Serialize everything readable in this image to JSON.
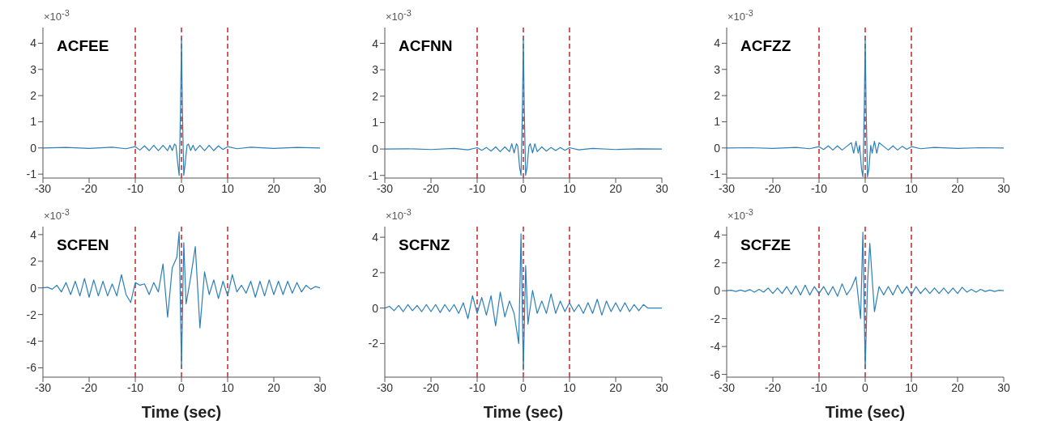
{
  "chart_data": [
    {
      "type": "line",
      "title": "ACFEE",
      "annotations": [
        "×10$^{-3}$"
      ],
      "xlim": [
        -30,
        30
      ],
      "xticks": [
        -30,
        -20,
        -10,
        0,
        10,
        20,
        30
      ],
      "ylim": [
        -1.15,
        4.6
      ],
      "yticks": [
        -1,
        0,
        1,
        2,
        3,
        4
      ],
      "x": [
        -30,
        -25,
        -20,
        -15,
        -12,
        -10,
        -9,
        -8,
        -7,
        -6,
        -5,
        -4,
        -3,
        -2.5,
        -2,
        -1.5,
        -1.2,
        -0.8,
        -0.5,
        -0.2,
        0,
        0.2,
        0.5,
        0.8,
        1.2,
        1.5,
        2,
        2.5,
        3,
        4,
        5,
        6,
        7,
        8,
        9,
        10,
        12,
        15,
        20,
        25,
        30
      ],
      "series": [
        {
          "color": "#2c7fb8",
          "values": [
            0,
            0.02,
            -0.02,
            0.03,
            -0.03,
            0.05,
            -0.08,
            0.08,
            -0.1,
            0.1,
            -0.1,
            0.1,
            -0.1,
            0.1,
            -0.1,
            0.15,
            0.1,
            -0.6,
            -1.05,
            1.5,
            4.2,
            1.5,
            -1.05,
            -0.6,
            0.1,
            0.15,
            -0.1,
            0.1,
            -0.1,
            0.1,
            -0.1,
            0.1,
            -0.1,
            0.08,
            -0.06,
            0.05,
            -0.03,
            0.03,
            -0.02,
            0.02,
            0
          ]
        }
      ],
      "ref_lines": [
        {
          "axis": "x",
          "value": -10,
          "color": "#c0282d",
          "line_style": "dashed"
        },
        {
          "axis": "x",
          "value": 0,
          "color": "#c0282d",
          "line_style": "dashed"
        },
        {
          "axis": "x",
          "value": 10,
          "color": "#c0282d",
          "line_style": "dashed"
        }
      ]
    },
    {
      "type": "line",
      "title": "ACFNN",
      "annotations": [
        "×10$^{-3}$"
      ],
      "xlim": [
        -30,
        30
      ],
      "xticks": [
        -30,
        -20,
        -10,
        0,
        10,
        20,
        30
      ],
      "ylim": [
        -1.1,
        4.6
      ],
      "yticks": [
        -1,
        0,
        1,
        2,
        3,
        4
      ],
      "x": [
        -30,
        -25,
        -20,
        -15,
        -12,
        -10,
        -9,
        -8,
        -7,
        -6,
        -5,
        -4,
        -3,
        -2.5,
        -2,
        -1.5,
        -1.2,
        -0.8,
        -0.5,
        -0.2,
        0,
        0.2,
        0.5,
        0.8,
        1.2,
        1.5,
        2,
        2.5,
        3,
        4,
        5,
        6,
        7,
        8,
        9,
        10,
        12,
        15,
        20,
        25,
        30
      ],
      "series": [
        {
          "color": "#2c7fb8",
          "values": [
            0,
            0.01,
            -0.02,
            0.02,
            -0.03,
            0.05,
            -0.05,
            0.06,
            -0.08,
            0.08,
            -0.1,
            0.08,
            -0.1,
            0.2,
            -0.15,
            0.2,
            0.1,
            -0.7,
            -1.0,
            1.5,
            4.2,
            1.5,
            -1.0,
            -0.7,
            0.1,
            0.2,
            -0.15,
            0.2,
            -0.1,
            0.08,
            -0.08,
            0.06,
            -0.06,
            0.06,
            -0.05,
            0.05,
            -0.03,
            0.02,
            -0.02,
            0.01,
            0
          ]
        }
      ],
      "ref_lines": [
        {
          "axis": "x",
          "value": -10,
          "color": "#c0282d",
          "line_style": "dashed"
        },
        {
          "axis": "x",
          "value": 0,
          "color": "#c0282d",
          "line_style": "dashed"
        },
        {
          "axis": "x",
          "value": 10,
          "color": "#c0282d",
          "line_style": "dashed"
        }
      ]
    },
    {
      "type": "line",
      "title": "ACFZZ",
      "annotations": [
        "×10$^{-3}$"
      ],
      "xlim": [
        -30,
        30
      ],
      "xticks": [
        -30,
        -20,
        -10,
        0,
        10,
        20,
        30
      ],
      "ylim": [
        -1.15,
        4.6
      ],
      "yticks": [
        -1,
        0,
        1,
        2,
        3,
        4
      ],
      "x": [
        -30,
        -25,
        -20,
        -15,
        -12,
        -10,
        -9,
        -8,
        -7,
        -6,
        -5,
        -4,
        -3,
        -2.5,
        -2,
        -1.5,
        -1.2,
        -0.8,
        -0.5,
        -0.2,
        0,
        0.2,
        0.5,
        0.8,
        1.2,
        1.5,
        2,
        2.5,
        3,
        4,
        5,
        6,
        7,
        8,
        9,
        10,
        12,
        15,
        20,
        25,
        30
      ],
      "series": [
        {
          "color": "#2c7fb8",
          "values": [
            0,
            0.01,
            -0.02,
            0.02,
            -0.03,
            0.05,
            -0.06,
            0.08,
            -0.08,
            0.08,
            -0.08,
            0.06,
            0.2,
            -0.2,
            0.25,
            -0.2,
            0.1,
            -0.8,
            -1.1,
            1.5,
            4.2,
            1.5,
            -1.1,
            -0.8,
            0.1,
            -0.2,
            0.25,
            -0.2,
            0.2,
            0.06,
            -0.08,
            0.08,
            -0.08,
            0.06,
            -0.05,
            0.05,
            -0.03,
            0.02,
            -0.02,
            0.01,
            0
          ]
        }
      ],
      "ref_lines": [
        {
          "axis": "x",
          "value": -10,
          "color": "#c0282d",
          "line_style": "dashed"
        },
        {
          "axis": "x",
          "value": 0,
          "color": "#c0282d",
          "line_style": "dashed"
        },
        {
          "axis": "x",
          "value": 10,
          "color": "#c0282d",
          "line_style": "dashed"
        }
      ]
    },
    {
      "type": "line",
      "title": "SCFEN",
      "xlabel": "Time (sec)",
      "annotations": [
        "×10$^{-3}$"
      ],
      "xlim": [
        -30,
        30
      ],
      "xticks": [
        -30,
        -20,
        -10,
        0,
        10,
        20,
        30
      ],
      "ylim": [
        -6.7,
        4.6
      ],
      "yticks": [
        -6,
        -4,
        -2,
        0,
        2,
        4
      ],
      "x": [
        -30,
        -29,
        -28,
        -27,
        -26,
        -25,
        -24,
        -23,
        -22,
        -21,
        -20,
        -19,
        -18,
        -17,
        -16,
        -15,
        -14,
        -13,
        -12,
        -11,
        -10,
        -9,
        -8,
        -7,
        -6,
        -5,
        -4,
        -3,
        -2,
        -1,
        -0.5,
        0,
        0.5,
        1,
        2,
        3,
        4,
        5,
        6,
        7,
        8,
        9,
        10,
        11,
        12,
        13,
        14,
        15,
        16,
        17,
        18,
        19,
        20,
        21,
        22,
        23,
        24,
        25,
        26,
        27,
        28,
        29,
        30
      ],
      "series": [
        {
          "color": "#2c7fb8",
          "values": [
            0,
            0.05,
            -0.1,
            0.2,
            -0.3,
            0.4,
            -0.5,
            0.5,
            -0.6,
            0.7,
            -0.7,
            0.6,
            -0.6,
            0.5,
            -0.6,
            0.3,
            -0.6,
            1.0,
            -0.5,
            -1.1,
            0.4,
            0.2,
            0.3,
            -0.5,
            0.4,
            -0.3,
            1.8,
            -2.2,
            1.5,
            2.3,
            4.2,
            -6,
            3.4,
            -1.2,
            0.8,
            3.1,
            -3.0,
            1.2,
            -0.5,
            0.6,
            -0.8,
            0.5,
            -0.6,
            1.0,
            -0.3,
            0.2,
            -0.4,
            0.5,
            -0.7,
            0.5,
            -0.6,
            0.6,
            -0.5,
            0.5,
            -0.5,
            0.5,
            -0.4,
            0.4,
            -0.3,
            0.2,
            -0.1,
            0.1,
            0
          ]
        }
      ],
      "ref_lines": [
        {
          "axis": "x",
          "value": -10,
          "color": "#c0282d",
          "line_style": "dashed"
        },
        {
          "axis": "x",
          "value": 0,
          "color": "#c0282d",
          "line_style": "dashed"
        },
        {
          "axis": "x",
          "value": 10,
          "color": "#c0282d",
          "line_style": "dashed"
        }
      ]
    },
    {
      "type": "line",
      "title": "SCFNZ",
      "xlabel": "Time (sec)",
      "annotations": [
        "×10$^{-3}$"
      ],
      "xlim": [
        -30,
        30
      ],
      "xticks": [
        -30,
        -20,
        -10,
        0,
        10,
        20,
        30
      ],
      "ylim": [
        -3.9,
        4.6
      ],
      "yticks": [
        -2,
        0,
        2,
        4
      ],
      "x": [
        -30,
        -29,
        -28,
        -27,
        -26,
        -25,
        -24,
        -23,
        -22,
        -21,
        -20,
        -19,
        -18,
        -17,
        -16,
        -15,
        -14,
        -13,
        -12,
        -11,
        -10,
        -9,
        -8,
        -7,
        -6,
        -5,
        -4,
        -3,
        -2,
        -1,
        -0.5,
        0,
        0.5,
        1,
        2,
        3,
        4,
        5,
        6,
        7,
        8,
        9,
        10,
        11,
        12,
        13,
        14,
        15,
        16,
        17,
        18,
        19,
        20,
        21,
        22,
        23,
        24,
        25,
        26,
        27,
        28,
        29,
        30
      ],
      "series": [
        {
          "color": "#2c7fb8",
          "values": [
            0,
            0.1,
            -0.15,
            0.15,
            -0.2,
            0.2,
            -0.15,
            0.15,
            -0.2,
            0.2,
            -0.2,
            0.2,
            -0.25,
            0.2,
            -0.2,
            0.2,
            -0.3,
            0.3,
            -0.6,
            0.7,
            -0.3,
            0.6,
            -0.4,
            0.7,
            -1.0,
            0.9,
            -0.5,
            0.4,
            -0.3,
            -2.0,
            4.2,
            -3.5,
            2.4,
            -0.9,
            1.0,
            -0.3,
            0.4,
            -0.3,
            0.8,
            -0.3,
            0.4,
            -0.2,
            0.3,
            -0.2,
            0.2,
            -0.3,
            0.3,
            -0.3,
            0.5,
            -0.4,
            0.4,
            -0.2,
            0.3,
            -0.2,
            0.3,
            -0.2,
            0.2,
            -0.15,
            0.2,
            0,
            0,
            0,
            0
          ]
        }
      ],
      "ref_lines": [
        {
          "axis": "x",
          "value": -10,
          "color": "#c0282d",
          "line_style": "dashed"
        },
        {
          "axis": "x",
          "value": 0,
          "color": "#c0282d",
          "line_style": "dashed"
        },
        {
          "axis": "x",
          "value": 10,
          "color": "#c0282d",
          "line_style": "dashed"
        }
      ]
    },
    {
      "type": "line",
      "title": "SCFZE",
      "xlabel": "Time (sec)",
      "annotations": [
        "×10$^{-3}$"
      ],
      "xlim": [
        -30,
        30
      ],
      "xticks": [
        -30,
        -20,
        -10,
        0,
        10,
        20,
        30
      ],
      "ylim": [
        -6.2,
        4.6
      ],
      "yticks": [
        -6,
        -4,
        -2,
        0,
        2,
        4
      ],
      "x": [
        -30,
        -29,
        -28,
        -27,
        -26,
        -25,
        -24,
        -23,
        -22,
        -21,
        -20,
        -19,
        -18,
        -17,
        -16,
        -15,
        -14,
        -13,
        -12,
        -11,
        -10,
        -9,
        -8,
        -7,
        -6,
        -5,
        -4,
        -3,
        -2,
        -1,
        -0.5,
        0,
        0.5,
        1,
        2,
        3,
        4,
        5,
        6,
        7,
        8,
        9,
        10,
        11,
        12,
        13,
        14,
        15,
        16,
        17,
        18,
        19,
        20,
        21,
        22,
        23,
        24,
        25,
        26,
        27,
        28,
        29,
        30
      ],
      "series": [
        {
          "color": "#2c7fb8",
          "values": [
            0,
            0.03,
            -0.05,
            0.05,
            -0.05,
            0.08,
            -0.1,
            0.1,
            -0.1,
            0.2,
            -0.2,
            0.2,
            -0.2,
            0.3,
            -0.25,
            0.35,
            -0.3,
            0.4,
            -0.3,
            0.3,
            -0.2,
            0.3,
            -0.3,
            0.3,
            -0.4,
            0.5,
            -0.3,
            0.2,
            1.0,
            -2.0,
            4.2,
            -5.6,
            0.5,
            3.4,
            -1.5,
            0.3,
            -0.3,
            0.3,
            -0.3,
            0.4,
            -0.2,
            0.3,
            -0.3,
            0.3,
            -0.2,
            0.2,
            -0.2,
            0.2,
            -0.2,
            0.2,
            -0.2,
            0.2,
            -0.2,
            0.25,
            -0.1,
            0.1,
            -0.1,
            0.1,
            -0.05,
            0.05,
            -0.05,
            0.03,
            0
          ]
        }
      ],
      "ref_lines": [
        {
          "axis": "x",
          "value": -10,
          "color": "#c0282d",
          "line_style": "dashed"
        },
        {
          "axis": "x",
          "value": 0,
          "color": "#c0282d",
          "line_style": "dashed"
        },
        {
          "axis": "x",
          "value": 10,
          "color": "#c0282d",
          "line_style": "dashed"
        }
      ]
    }
  ]
}
